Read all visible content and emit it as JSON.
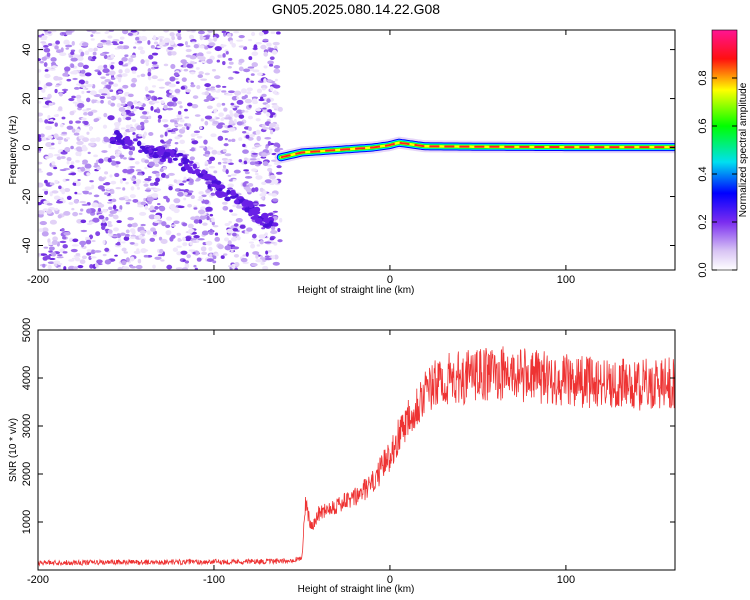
{
  "title": "GN05.2025.080.14.22.G08",
  "colors": {
    "snr_line": "#ee3333",
    "speckle": "#8833ee",
    "track_core": "#ff2222"
  },
  "chart_data": [
    {
      "type": "heatmap",
      "xlabel": "Height of straight line (km)",
      "ylabel": "Frequency (Hz)",
      "xlim": [
        -200,
        162
      ],
      "ylim": [
        -50,
        48
      ],
      "xticks": [
        "-200",
        "-100",
        "0",
        "100"
      ],
      "yticks": [
        "-40",
        "-20",
        "0",
        "20",
        "40"
      ],
      "colorbar": {
        "label": "Normalized spectral amplitude",
        "range": [
          0,
          1
        ],
        "ticks": [
          "0.0",
          "0.2",
          "0.4",
          "0.6",
          "0.8"
        ],
        "colormap": "rainbow (white, violet, blue, cyan, green, yellow, red, magenta)"
      },
      "features": [
        {
          "description": "noise speckle region",
          "x_range": [
            -200,
            -62
          ],
          "freq_range": [
            -50,
            48
          ]
        },
        {
          "description": "diagonal track",
          "x": [
            -160,
            -120,
            -100,
            -80,
            -65
          ],
          "freq": [
            5,
            -5,
            -15,
            -25,
            -33
          ]
        },
        {
          "description": "carrier line",
          "x": [
            -62,
            -50,
            -30,
            -10,
            0,
            5,
            20,
            60,
            100,
            162
          ],
          "freq": [
            -4,
            -2,
            -1,
            0,
            1,
            2,
            0.5,
            0.3,
            0.2,
            0.2
          ]
        }
      ]
    },
    {
      "type": "line",
      "xlabel": "Height of straight line (km)",
      "ylabel": "SNR (10 * v/v)",
      "xlim": [
        -200,
        162
      ],
      "ylim": [
        0,
        5000
      ],
      "xticks": [
        "-200",
        "-100",
        "0",
        "100"
      ],
      "yticks": [
        "1000",
        "2000",
        "3000",
        "4000",
        "5000"
      ],
      "series": [
        {
          "x": [
            -200,
            -150,
            -100,
            -60,
            -50,
            -48,
            -45,
            -40,
            -35,
            -30,
            -20,
            -10,
            0,
            10,
            20,
            30,
            40,
            60,
            80,
            100,
            120,
            140,
            162
          ],
          "y": [
            150,
            160,
            170,
            180,
            250,
            1400,
            900,
            1200,
            1300,
            1350,
            1500,
            1800,
            2400,
            3200,
            3700,
            3950,
            4000,
            4100,
            4050,
            3950,
            3900,
            3850,
            3900
          ]
        }
      ]
    }
  ]
}
